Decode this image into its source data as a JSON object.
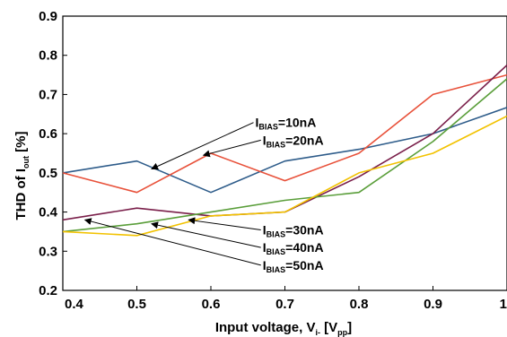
{
  "chart_data": {
    "type": "line",
    "xlabel": {
      "main": "Input voltage, V",
      "sub": "i-",
      "bracket_open": " [V",
      "unit_sub": "pp",
      "bracket_close": "]"
    },
    "ylabel": {
      "main": "THD of I",
      "sub": "out",
      "rest": " [%]"
    },
    "xlim": [
      0.4,
      1.0
    ],
    "ylim": [
      0.2,
      0.9
    ],
    "xticks": [
      "0.4",
      "0.5",
      "0.6",
      "0.7",
      "0.8",
      "0.9",
      "1"
    ],
    "yticks": [
      "0.2",
      "0.3",
      "0.4",
      "0.5",
      "0.6",
      "0.7",
      "0.8",
      "0.9"
    ],
    "grid": false,
    "x": [
      0.4,
      0.5,
      0.6,
      0.7,
      0.8,
      0.9,
      1.0
    ],
    "series": [
      {
        "values": [
          0.5,
          0.53,
          0.45,
          0.53,
          0.56,
          0.6,
          0.667
        ],
        "color": "#2e5c8a"
      },
      {
        "values": [
          0.5,
          0.45,
          0.55,
          0.48,
          0.55,
          0.7,
          0.75
        ],
        "color": "#e8513a"
      },
      {
        "values": [
          0.38,
          0.41,
          0.39,
          0.4,
          0.49,
          0.6,
          0.775
        ],
        "color": "#7a1f4a"
      },
      {
        "values": [
          0.35,
          0.37,
          0.4,
          0.43,
          0.45,
          0.58,
          0.74
        ],
        "color": "#5a9e3a"
      },
      {
        "values": [
          0.35,
          0.34,
          0.39,
          0.4,
          0.5,
          0.55,
          0.645
        ],
        "color": "#f2c200"
      }
    ],
    "annotations": [
      {
        "main": "I",
        "sub": "BIAS",
        "rest": "=10nA",
        "target": [
          0.52,
          0.51
        ],
        "label": [
          0.66,
          0.617
        ]
      },
      {
        "main": "I",
        "sub": "BIAS",
        "rest": "=20nA",
        "target": [
          0.59,
          0.545
        ],
        "label": [
          0.67,
          0.572
        ]
      },
      {
        "main": "I",
        "sub": "BIAS",
        "rest": "=30nA",
        "target": [
          0.57,
          0.38
        ],
        "label": [
          0.67,
          0.343
        ]
      },
      {
        "main": "I",
        "sub": "BIAS",
        "rest": "=40nA",
        "target": [
          0.52,
          0.37
        ],
        "label": [
          0.67,
          0.298
        ]
      },
      {
        "main": "I",
        "sub": "BIAS",
        "rest": "=50nA",
        "target": [
          0.43,
          0.38
        ],
        "label": [
          0.67,
          0.253
        ]
      }
    ]
  }
}
